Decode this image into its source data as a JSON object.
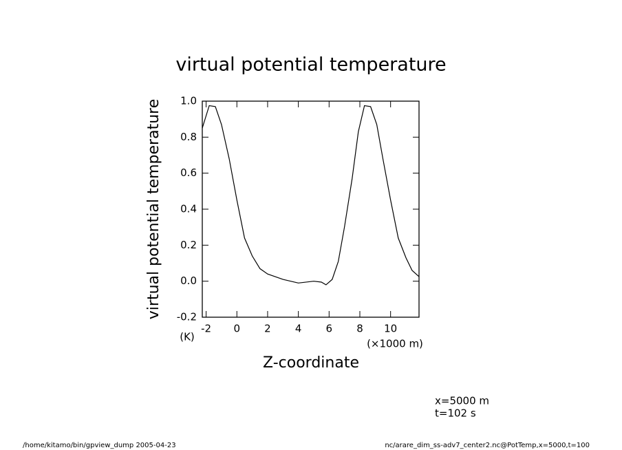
{
  "chart_data": {
    "type": "line",
    "title": "virtual potential temperature",
    "y_label": "virtual potential temperature",
    "y_unit": "(K)",
    "x_label": "Z-coordinate",
    "x_unit": "(×1000 m)",
    "annotations": [
      "x=5000  m",
      "t=102  s"
    ],
    "footer_left": "/home/kitamo/bin/gpview_dump  2005-04-23",
    "footer_right": "nc/arare_dim_ss-adv7_center2.nc@PotTemp,x=5000,t=100",
    "x": [
      -2.25,
      -1.8,
      -1.4,
      -1.0,
      -0.5,
      0,
      0.5,
      1.0,
      1.5,
      2.0,
      3,
      4,
      5,
      5.5,
      5.8,
      6.2,
      6.6,
      7,
      7.5,
      7.9,
      8.3,
      8.7,
      9.1,
      9.5,
      10,
      10.5,
      11,
      11.4,
      11.85
    ],
    "values": [
      0.85,
      0.975,
      0.97,
      0.87,
      0.68,
      0.45,
      0.24,
      0.14,
      0.07,
      0.04,
      0.01,
      -0.01,
      0.0,
      -0.005,
      -0.02,
      0.01,
      0.11,
      0.3,
      0.57,
      0.83,
      0.975,
      0.97,
      0.87,
      0.68,
      0.45,
      0.24,
      0.13,
      0.06,
      0.025
    ],
    "color": "#000000",
    "xlim": [
      -2.25,
      11.85
    ],
    "ylim": [
      -0.2,
      1.0
    ],
    "xticks": [
      -2,
      0,
      2,
      4,
      6,
      8,
      10
    ],
    "yticks": [
      {
        "value": 1.0,
        "label": "1.0"
      },
      0.8,
      0.6,
      0.4,
      0.2,
      {
        "value": 0,
        "label": "0.0"
      },
      -0.2
    ]
  }
}
